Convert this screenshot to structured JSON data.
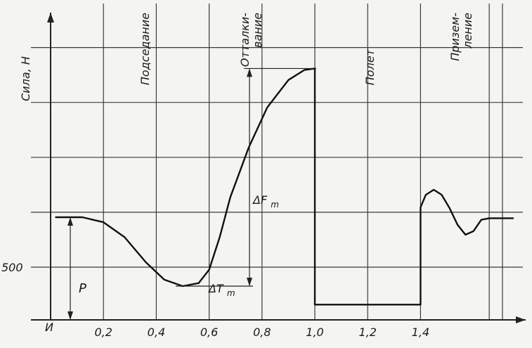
{
  "chart_data": {
    "type": "line",
    "ylabel": "Сила, Н",
    "xlabel": "",
    "origin_label": "И",
    "x_ticks": [
      {
        "value": 0.2,
        "label": "0,2"
      },
      {
        "value": 0.4,
        "label": "0,4"
      },
      {
        "value": 0.6,
        "label": "0,6"
      },
      {
        "value": 0.8,
        "label": "0,8"
      },
      {
        "value": 1.0,
        "label": "1,0"
      },
      {
        "value": 1.2,
        "label": "1,2"
      },
      {
        "value": 1.4,
        "label": "1,4"
      }
    ],
    "y_ticks": [
      {
        "value": 500,
        "label": "500"
      }
    ],
    "phases": [
      {
        "name": "squat",
        "lines": [
          "Подседание"
        ]
      },
      {
        "name": "push-off",
        "lines": [
          "Отталки-",
          "вание"
        ]
      },
      {
        "name": "flight",
        "lines": [
          "Полет"
        ]
      },
      {
        "name": "landing",
        "lines": [
          "Призем-",
          "ление"
        ]
      }
    ],
    "annotations": {
      "delta_f": "ΔF",
      "delta_f_sub": "m",
      "delta_t": "ΔT",
      "delta_t_sub": "m",
      "weight": "P"
    },
    "series": [
      {
        "points": [
          [
            0.02,
            600
          ],
          [
            0.12,
            600
          ],
          [
            0.2,
            590
          ],
          [
            0.28,
            560
          ],
          [
            0.36,
            510
          ],
          [
            0.43,
            475
          ],
          [
            0.5,
            462
          ],
          [
            0.56,
            468
          ],
          [
            0.6,
            495
          ],
          [
            0.64,
            560
          ],
          [
            0.68,
            640
          ],
          [
            0.75,
            740
          ],
          [
            0.82,
            820
          ],
          [
            0.9,
            875
          ],
          [
            0.96,
            895
          ],
          [
            1.0,
            898
          ],
          [
            1.0,
            425
          ],
          [
            1.4,
            425
          ],
          [
            1.4,
            620
          ],
          [
            1.42,
            645
          ],
          [
            1.45,
            655
          ],
          [
            1.48,
            645
          ],
          [
            1.51,
            618
          ],
          [
            1.54,
            585
          ],
          [
            1.57,
            565
          ],
          [
            1.6,
            572
          ],
          [
            1.63,
            595
          ],
          [
            1.66,
            598
          ],
          [
            1.75,
            598
          ]
        ]
      }
    ],
    "xlim": [
      0.0,
      1.76
    ],
    "ylim": [
      425,
      1050
    ],
    "grid": true
  }
}
